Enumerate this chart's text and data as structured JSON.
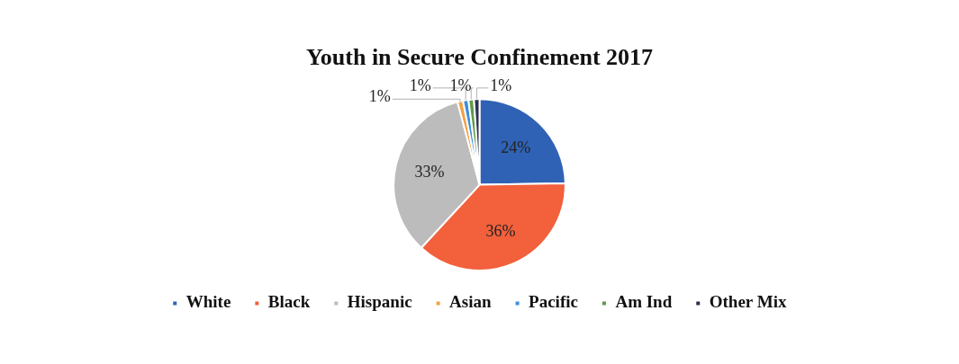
{
  "chart_data": {
    "type": "pie",
    "title": "Youth in Secure Confinement 2017",
    "categories": [
      "White",
      "Black",
      "Hispanic",
      "Asian",
      "Pacific",
      "Am Ind",
      "Other Mix"
    ],
    "values": [
      24,
      36,
      33,
      1,
      1,
      1,
      1
    ],
    "value_labels": [
      "24%",
      "36%",
      "33%",
      "1%",
      "1%",
      "1%",
      "1%"
    ],
    "colors": [
      "#2f62b5",
      "#f2603c",
      "#bcbcbc",
      "#f5a043",
      "#3d8fdb",
      "#5f9a4b",
      "#2f3152"
    ],
    "legend": "bottom"
  }
}
